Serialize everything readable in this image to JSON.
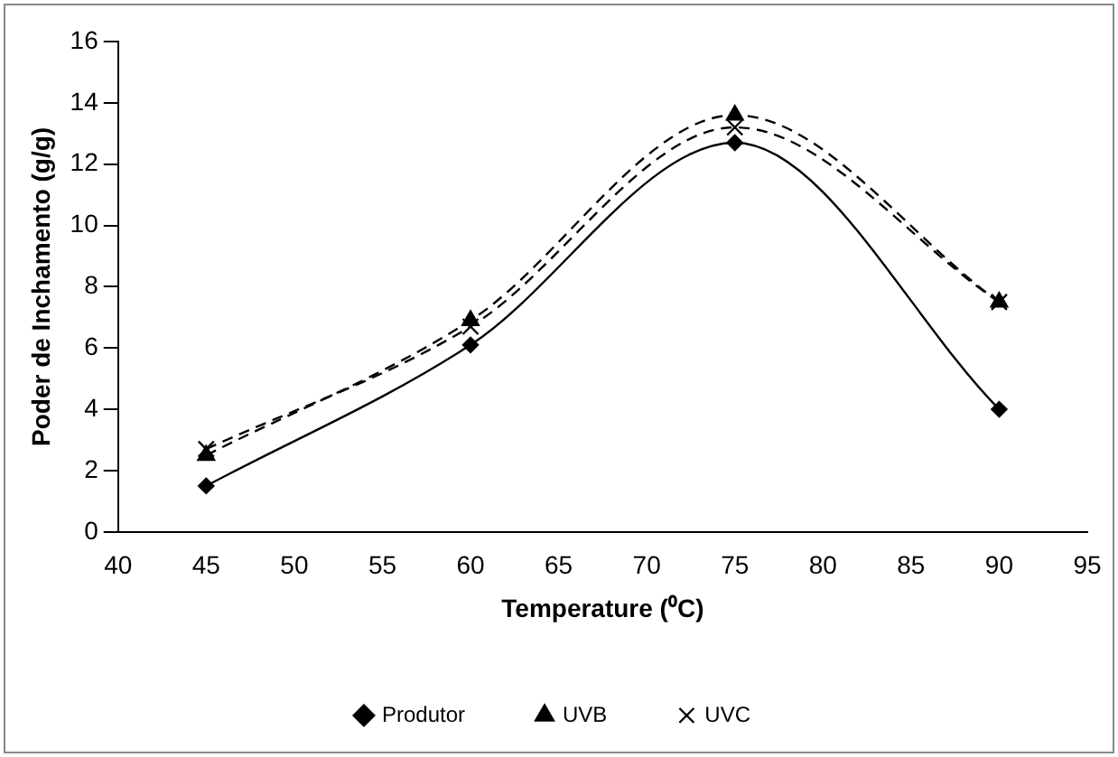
{
  "chart_data": {
    "type": "line",
    "xlabel": "Temperature (⁰C)",
    "ylabel": "Poder de Inchamento (g/g)",
    "x": [
      45,
      60,
      75,
      90
    ],
    "series": [
      {
        "name": "Produtor",
        "color": "#000000",
        "values": [
          1.5,
          6.1,
          12.7,
          4.0
        ],
        "marker": "diamond",
        "line_style": "solid"
      },
      {
        "name": "UVB",
        "color": "#000000",
        "values": [
          2.5,
          6.9,
          13.6,
          7.5
        ],
        "marker": "triangle",
        "line_style": "dashed"
      },
      {
        "name": "UVC",
        "color": "#000000",
        "values": [
          2.7,
          6.7,
          13.2,
          7.5
        ],
        "marker": "cross",
        "line_style": "dashed"
      }
    ],
    "xlim": [
      40,
      95
    ],
    "xticks": [
      40,
      45,
      50,
      55,
      60,
      65,
      70,
      75,
      80,
      85,
      90,
      95
    ],
    "ylim": [
      0,
      16
    ],
    "yticks": [
      0,
      2,
      4,
      6,
      8,
      10,
      12,
      14,
      16
    ],
    "grid": false,
    "legend": "bottom"
  }
}
